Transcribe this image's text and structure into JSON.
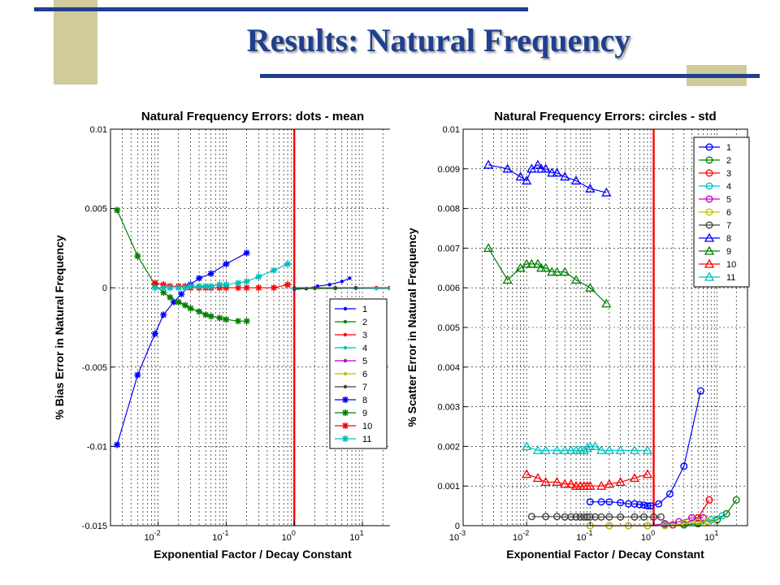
{
  "slide": {
    "title": "Results: Natural Frequency"
  },
  "colors": {
    "accent_bar": "#1f3f8f",
    "tan_block": "#cfcc9a",
    "title": "#1f3f8f",
    "vline": "#ff0000"
  },
  "chart_data": [
    {
      "type": "line",
      "title": "Natural Frequency Errors: dots - mean",
      "xlabel": "Exponential Factor / Decay Constant",
      "ylabel": "% Bias Error in Natural Frequency",
      "xscale": "log",
      "xlim": [
        0.002,
        30
      ],
      "ylim": [
        -0.015,
        0.01
      ],
      "yticks": [
        "-0.015",
        "-0.01",
        "-0.005",
        "0",
        "0.005",
        "0.01"
      ],
      "xticks": [
        {
          "base": "10",
          "exp": "-2"
        },
        {
          "base": "10",
          "exp": "-1"
        },
        {
          "base": "10",
          "exp": "0"
        },
        {
          "base": "10",
          "exp": "1"
        }
      ],
      "grid": true,
      "vline_x": 1,
      "legend_position": "lower-right",
      "series": [
        {
          "name": "1",
          "color": "#0000ff",
          "marker": "dot",
          "x": [
            1.0,
            1.5,
            2.2,
            3.3,
            5,
            6.5
          ],
          "y": [
            -0.0001,
            -5e-05,
            0.0001,
            0.0002,
            0.0004,
            0.0006
          ]
        },
        {
          "name": "2",
          "color": "#008000",
          "marker": "dot",
          "x": [
            1.0,
            2,
            4,
            8,
            16,
            25
          ],
          "y": [
            -5e-05,
            -5e-05,
            -5e-05,
            0,
            0,
            0
          ]
        },
        {
          "name": "3",
          "color": "#ff0000",
          "marker": "dot",
          "x": [
            1.0,
            2,
            4,
            8,
            16,
            25
          ],
          "y": [
            0,
            0,
            0,
            0,
            0,
            0
          ]
        },
        {
          "name": "4",
          "color": "#00bfbf",
          "marker": "dot",
          "x": [
            1.0,
            2,
            4,
            8,
            16,
            25
          ],
          "y": [
            0,
            0,
            0,
            -5e-05,
            -5e-05,
            -5e-05
          ]
        },
        {
          "name": "5",
          "color": "#bf00bf",
          "marker": "dot",
          "x": [
            1.0,
            2,
            4,
            8
          ],
          "y": [
            0,
            0,
            0,
            0
          ]
        },
        {
          "name": "6",
          "color": "#bfbf00",
          "marker": "dot",
          "x": [
            1.0,
            2,
            4,
            8
          ],
          "y": [
            0,
            0,
            0,
            0
          ]
        },
        {
          "name": "7",
          "color": "#404040",
          "marker": "dot",
          "x": [
            1.0,
            2,
            4,
            8
          ],
          "y": [
            0,
            0,
            0,
            0
          ]
        },
        {
          "name": "8",
          "color": "#0000ff",
          "marker": "star",
          "x": [
            0.0025,
            0.005,
            0.009,
            0.012,
            0.017,
            0.022,
            0.03,
            0.04,
            0.06,
            0.1,
            0.2
          ],
          "y": [
            -0.0099,
            -0.0055,
            -0.0029,
            -0.0017,
            -0.0009,
            -0.0004,
            0.0002,
            0.0006,
            0.0009,
            0.0015,
            0.0022
          ]
        },
        {
          "name": "9",
          "color": "#008000",
          "marker": "star",
          "x": [
            0.0025,
            0.005,
            0.009,
            0.012,
            0.015,
            0.02,
            0.025,
            0.03,
            0.04,
            0.05,
            0.06,
            0.08,
            0.1,
            0.15,
            0.2
          ],
          "y": [
            0.0049,
            0.002,
            0.0002,
            -0.0003,
            -0.0006,
            -0.0009,
            -0.0011,
            -0.0013,
            -0.0015,
            -0.0017,
            -0.0018,
            -0.0019,
            -0.002,
            -0.0021,
            -0.0021
          ]
        },
        {
          "name": "10",
          "color": "#ff0000",
          "marker": "star",
          "x": [
            0.009,
            0.012,
            0.015,
            0.02,
            0.025,
            0.03,
            0.04,
            0.05,
            0.06,
            0.08,
            0.1,
            0.15,
            0.2,
            0.3,
            0.5,
            0.8
          ],
          "y": [
            0.0003,
            0.0002,
            0.0001,
            0.0001,
            0.0001,
            0,
            0,
            0,
            0,
            0,
            0,
            0,
            0,
            0,
            0,
            0.0002
          ]
        },
        {
          "name": "11",
          "color": "#00bfbf",
          "marker": "star",
          "x": [
            0.009,
            0.012,
            0.015,
            0.02,
            0.025,
            0.03,
            0.04,
            0.05,
            0.06,
            0.08,
            0.1,
            0.15,
            0.2,
            0.3,
            0.5,
            0.8
          ],
          "y": [
            0,
            0,
            0,
            0,
            0,
            0.0001,
            0.0001,
            0.0001,
            0.0001,
            0.0002,
            0.0002,
            0.0003,
            0.0004,
            0.0007,
            0.0011,
            0.0015
          ]
        }
      ]
    },
    {
      "type": "line",
      "title": "Natural Frequency Errors: circles - std",
      "xlabel": "Exponential Factor / Decay Constant",
      "ylabel": "% Scatter Error in Natural Frequency",
      "xscale": "log",
      "xlim": [
        0.001,
        30
      ],
      "ylim": [
        0,
        0.01
      ],
      "yticks": [
        "0",
        "0.001",
        "0.002",
        "0.003",
        "0.004",
        "0.005",
        "0.006",
        "0.007",
        "0.008",
        "0.009",
        "0.01"
      ],
      "xticks": [
        {
          "base": "10",
          "exp": "-3"
        },
        {
          "base": "10",
          "exp": "-2"
        },
        {
          "base": "10",
          "exp": "-1"
        },
        {
          "base": "10",
          "exp": "0"
        },
        {
          "base": "10",
          "exp": "1"
        }
      ],
      "grid": true,
      "vline_x": 1,
      "legend_position": "upper-right",
      "series": [
        {
          "name": "1",
          "color": "#0000ff",
          "marker": "circle",
          "x": [
            0.1,
            0.15,
            0.2,
            0.3,
            0.4,
            0.5,
            0.6,
            0.7,
            0.8,
            0.9,
            1.2,
            1.8,
            3,
            5.5
          ],
          "y": [
            0.0006,
            0.0006,
            0.0006,
            0.00058,
            0.00055,
            0.00055,
            0.00053,
            0.00052,
            0.0005,
            0.0005,
            0.00055,
            0.0008,
            0.0015,
            0.0034
          ]
        },
        {
          "name": "2",
          "color": "#008000",
          "marker": "circle",
          "x": [
            3,
            5,
            7,
            10,
            14,
            20
          ],
          "y": [
            2e-05,
            5e-05,
            0.0001,
            0.00015,
            0.0003,
            0.00065
          ]
        },
        {
          "name": "3",
          "color": "#ff0000",
          "marker": "circle",
          "x": [
            2,
            3,
            5,
            7.5
          ],
          "y": [
            2e-05,
            5e-05,
            0.0002,
            0.00065
          ]
        },
        {
          "name": "4",
          "color": "#00bfbf",
          "marker": "circle",
          "x": [
            1.5,
            3,
            5,
            8,
            12
          ],
          "y": [
            2e-05,
            5e-05,
            0.0001,
            0.00015,
            0.00025
          ]
        },
        {
          "name": "5",
          "color": "#bf00bf",
          "marker": "circle",
          "x": [
            0.1,
            0.2,
            0.4,
            0.8,
            1.5,
            2.5,
            4,
            6
          ],
          "y": [
            0,
            0,
            0,
            0,
            5e-05,
            0.0001,
            0.0002,
            0.0002
          ]
        },
        {
          "name": "6",
          "color": "#bfbf00",
          "marker": "circle",
          "x": [
            0.1,
            0.2,
            0.4,
            0.8,
            1.5,
            3,
            5,
            7
          ],
          "y": [
            0,
            0,
            0,
            0,
            0,
            5e-05,
            0.0001,
            0.0001
          ]
        },
        {
          "name": "7",
          "color": "#404040",
          "marker": "circle",
          "x": [
            0.012,
            0.02,
            0.03,
            0.04,
            0.05,
            0.06,
            0.07,
            0.08,
            0.09,
            0.1,
            0.12,
            0.15,
            0.2,
            0.3,
            0.5,
            0.7,
            1.0,
            1.3
          ],
          "y": [
            0.00023,
            0.00023,
            0.00023,
            0.00022,
            0.00022,
            0.00022,
            0.00022,
            0.00022,
            0.00022,
            0.00022,
            0.00022,
            0.00022,
            0.00022,
            0.00022,
            0.00022,
            0.00022,
            0.00022,
            0.00022
          ]
        },
        {
          "name": "8",
          "color": "#0000ff",
          "marker": "triangle",
          "x": [
            0.0025,
            0.005,
            0.008,
            0.01,
            0.012,
            0.015,
            0.017,
            0.02,
            0.025,
            0.03,
            0.04,
            0.06,
            0.1,
            0.18
          ],
          "y": [
            0.0091,
            0.009,
            0.0088,
            0.0087,
            0.009,
            0.0091,
            0.009,
            0.009,
            0.0089,
            0.0089,
            0.0088,
            0.0087,
            0.0085,
            0.0084
          ]
        },
        {
          "name": "9",
          "color": "#008000",
          "marker": "triangle",
          "x": [
            0.0025,
            0.005,
            0.008,
            0.01,
            0.012,
            0.015,
            0.017,
            0.02,
            0.025,
            0.03,
            0.04,
            0.06,
            0.1,
            0.18
          ],
          "y": [
            0.007,
            0.0062,
            0.0065,
            0.0066,
            0.0066,
            0.0066,
            0.0065,
            0.0065,
            0.0064,
            0.0064,
            0.0064,
            0.0062,
            0.006,
            0.0056
          ]
        },
        {
          "name": "10",
          "color": "#ff0000",
          "marker": "triangle",
          "x": [
            0.01,
            0.015,
            0.02,
            0.03,
            0.04,
            0.05,
            0.06,
            0.07,
            0.08,
            0.09,
            0.1,
            0.15,
            0.2,
            0.3,
            0.5,
            0.8
          ],
          "y": [
            0.0013,
            0.0012,
            0.0011,
            0.0011,
            0.00105,
            0.00105,
            0.001,
            0.001,
            0.001,
            0.001,
            0.001,
            0.001,
            0.00105,
            0.0011,
            0.0012,
            0.0013
          ]
        },
        {
          "name": "11",
          "color": "#00bfbf",
          "marker": "triangle",
          "x": [
            0.01,
            0.015,
            0.02,
            0.03,
            0.04,
            0.05,
            0.06,
            0.07,
            0.08,
            0.09,
            0.1,
            0.12,
            0.15,
            0.2,
            0.3,
            0.5,
            0.8
          ],
          "y": [
            0.002,
            0.0019,
            0.0019,
            0.0019,
            0.0019,
            0.0019,
            0.0019,
            0.0019,
            0.0019,
            0.00195,
            0.002,
            0.002,
            0.0019,
            0.0019,
            0.0019,
            0.0019,
            0.0019
          ]
        }
      ]
    }
  ]
}
